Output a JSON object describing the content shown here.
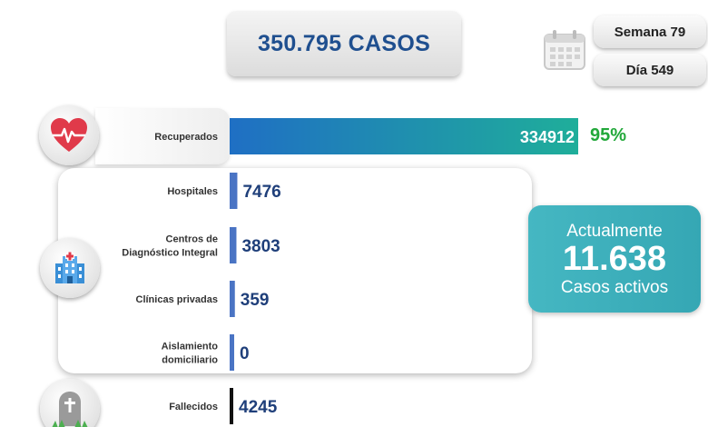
{
  "total_cases": "350.795 CASOS",
  "week_label": "Semana 79",
  "day_label": "Día 549",
  "icons": {
    "calendar": "calendar-icon",
    "heart": "heart-pulse-icon",
    "hospital": "hospital-icon",
    "grave": "tombstone-icon"
  },
  "colors": {
    "title_blue": "#1f4f8f",
    "recovered_gradient_start": "#1f6fc4",
    "recovered_gradient_end": "#1fae9a",
    "percent_green": "#22a83a",
    "active_teal": "#3cb0bc",
    "bar_blue": "#4a74c4",
    "deceased_bar": "#111111"
  },
  "active": {
    "line1": "Actualmente",
    "count": "11.638",
    "line3": "Casos activos"
  },
  "chart_data": {
    "type": "bar",
    "orientation": "horizontal",
    "categories": [
      "Recuperados",
      "Hospitales",
      "Centros de Diagnóstico Integral",
      "Clínicas privadas",
      "Aislamiento domiciliario",
      "Fallecidos"
    ],
    "label_lines": [
      [
        "Recuperados"
      ],
      [
        "Hospitales"
      ],
      [
        "Centros de",
        "Diagnóstico Integral"
      ],
      [
        "Clínicas privadas"
      ],
      [
        "Aislamiento",
        "domiciliario"
      ],
      [
        "Fallecidos"
      ]
    ],
    "values": [
      334912,
      7476,
      3803,
      359,
      0,
      4245
    ],
    "value_labels": [
      "334912",
      "7476",
      "3803",
      "359",
      "0",
      "4245"
    ],
    "recovered_percent": "95%",
    "title": "",
    "xlabel": "",
    "ylabel": "",
    "grid": false
  }
}
